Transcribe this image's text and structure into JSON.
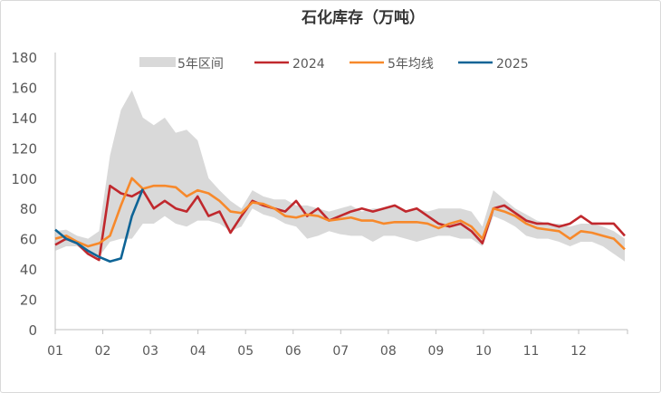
{
  "chart_data": {
    "type": "line",
    "title": "石化库存（万吨）",
    "xlabel": "",
    "ylabel": "",
    "ylim": [
      0,
      180
    ],
    "yticks": [
      0,
      20,
      40,
      60,
      80,
      100,
      120,
      140,
      160,
      180
    ],
    "month_labels": [
      "01",
      "02",
      "03",
      "04",
      "05",
      "06",
      "07",
      "08",
      "09",
      "10",
      "11",
      "12"
    ],
    "x_unit": "week",
    "legend_position": "top",
    "grid": false,
    "band": {
      "name": "5年区间",
      "color": "#d9d9d9",
      "max": [
        65,
        66,
        62,
        60,
        65,
        115,
        145,
        158,
        140,
        135,
        140,
        130,
        132,
        125,
        100,
        92,
        85,
        80,
        92,
        88,
        86,
        86,
        82,
        82,
        80,
        78,
        80,
        82,
        78,
        80,
        80,
        82,
        78,
        80,
        78,
        80,
        80,
        80,
        78,
        68,
        92,
        86,
        80,
        76,
        72,
        70,
        70,
        68,
        70,
        70,
        68,
        65,
        60
      ],
      "min": [
        52,
        55,
        55,
        50,
        48,
        58,
        60,
        60,
        70,
        70,
        75,
        70,
        68,
        72,
        72,
        70,
        65,
        68,
        80,
        76,
        74,
        70,
        68,
        60,
        62,
        65,
        63,
        62,
        62,
        58,
        62,
        62,
        60,
        58,
        60,
        62,
        62,
        60,
        60,
        55,
        75,
        72,
        68,
        62,
        60,
        60,
        58,
        55,
        58,
        58,
        55,
        50,
        45
      ]
    },
    "series": [
      {
        "name": "2024",
        "color": "#c0282d",
        "values": [
          56,
          60,
          57,
          50,
          46,
          95,
          90,
          88,
          92,
          80,
          85,
          80,
          78,
          88,
          75,
          78,
          64,
          75,
          85,
          82,
          80,
          78,
          85,
          75,
          80,
          72,
          75,
          78,
          80,
          78,
          80,
          82,
          78,
          80,
          75,
          70,
          68,
          70,
          65,
          57,
          80,
          82,
          77,
          72,
          70,
          70,
          68,
          70,
          75,
          70,
          70,
          70,
          62
        ]
      },
      {
        "name": "5年均线",
        "color": "#f7892b",
        "values": [
          60,
          62,
          58,
          55,
          57,
          62,
          82,
          100,
          93,
          95,
          95,
          94,
          88,
          92,
          90,
          85,
          78,
          77,
          84,
          83,
          80,
          75,
          74,
          76,
          75,
          72,
          73,
          74,
          72,
          72,
          70,
          71,
          71,
          71,
          70,
          67,
          70,
          72,
          68,
          60,
          80,
          78,
          75,
          70,
          67,
          66,
          65,
          60,
          65,
          64,
          62,
          60,
          53
        ]
      },
      {
        "name": "2025",
        "color": "#0e6496",
        "values": [
          66,
          60,
          57,
          52,
          48,
          45,
          47,
          75,
          93
        ]
      }
    ]
  }
}
